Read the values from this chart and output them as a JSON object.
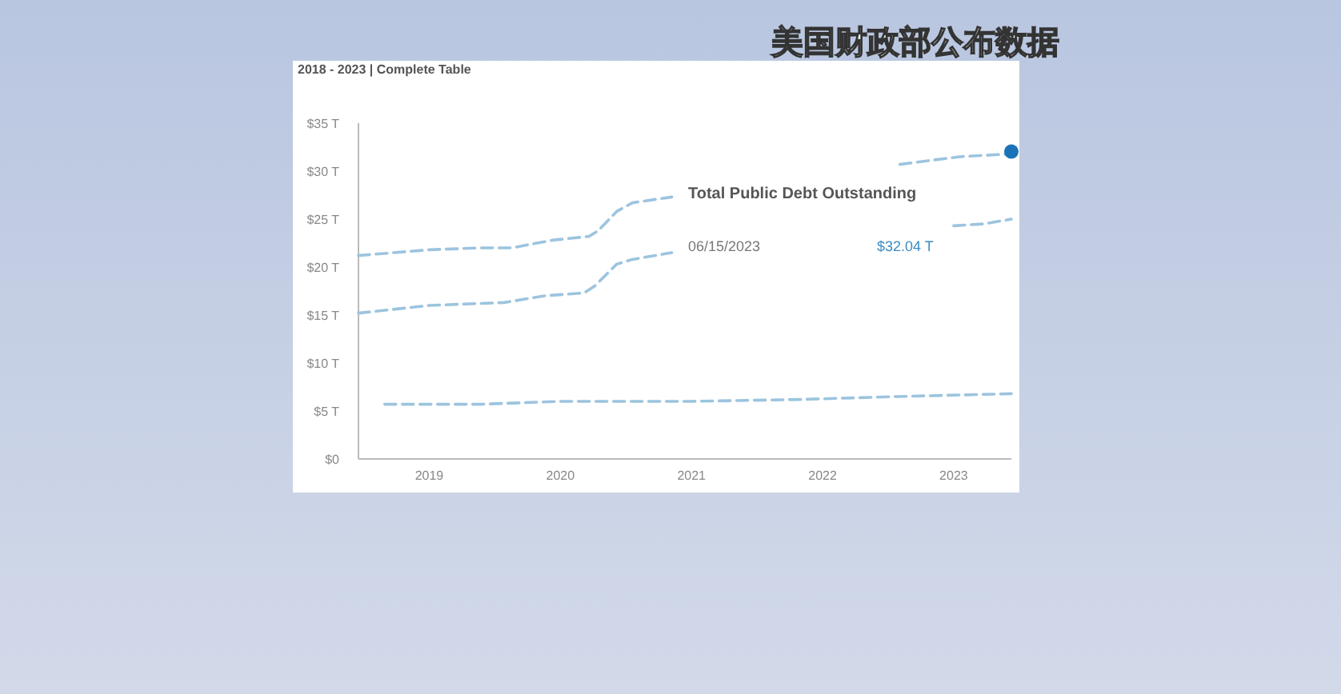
{
  "chart_data": {
    "type": "line",
    "title": "2018 - 2023 | Complete Table",
    "line_style": "dashed",
    "annotations": [
      "Total Public Debt Outstanding",
      "06/15/2023",
      "$32.04 T",
      "美国财政部公布数据"
    ],
    "xlim": [
      2018.46,
      2023.44
    ],
    "xticks": [
      2019,
      2020,
      2021,
      2022,
      2023
    ],
    "ylim": [
      0,
      35
    ],
    "yticks": [
      {
        "value": 0,
        "label": "$0"
      },
      {
        "value": 5,
        "label": "$5 T"
      },
      {
        "value": 10,
        "label": "$10 T"
      },
      {
        "value": 15,
        "label": "$15 T"
      },
      {
        "value": 20,
        "label": "$20 T"
      },
      {
        "value": 25,
        "label": "$25 T"
      },
      {
        "value": 30,
        "label": "$30 T"
      },
      {
        "value": 35,
        "label": "$35 T"
      }
    ],
    "series": [
      {
        "color": "#9cc4de",
        "x": [
          2018.46,
          2019.0,
          2019.39,
          2019.63,
          2019.94,
          2020.22,
          2020.29,
          2020.43,
          2020.55,
          2020.85,
          2021.5,
          2022.59,
          2022.87,
          2023.05,
          2023.44
        ],
        "values": [
          21.2,
          21.8,
          22.0,
          22.0,
          22.8,
          23.2,
          23.8,
          25.8,
          26.7,
          27.3,
          null,
          30.7,
          31.2,
          31.5,
          31.8
        ]
      },
      {
        "color": "#9cc4de",
        "x": [
          2018.46,
          2019.0,
          2019.57,
          2019.88,
          2020.18,
          2020.26,
          2020.43,
          2020.55,
          2020.85,
          2021.5,
          2023.0,
          2023.23,
          2023.44
        ],
        "values": [
          15.2,
          16.0,
          16.3,
          17.0,
          17.3,
          18.0,
          20.3,
          20.8,
          21.5,
          null,
          24.3,
          24.5,
          25.0
        ]
      },
      {
        "color": "#9cc4de",
        "x": [
          2018.66,
          2019.39,
          2020.0,
          2020.98,
          2021.83,
          2022.56,
          2023.44
        ],
        "values": [
          5.7,
          5.7,
          6.0,
          6.0,
          6.2,
          6.5,
          6.8
        ]
      },
      {
        "type": "scatter",
        "color": "#1a73b8",
        "x": [
          2023.44
        ],
        "values": [
          32.04
        ]
      }
    ]
  }
}
